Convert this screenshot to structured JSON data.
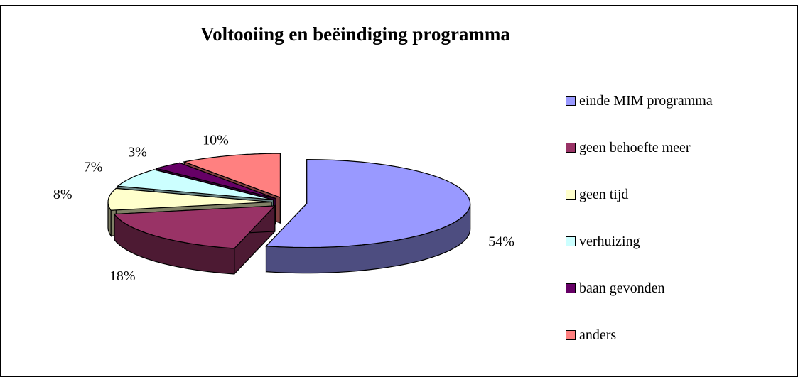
{
  "chart_data": {
    "type": "pie",
    "title": "Voltooiing en beëindiging programma",
    "categories": [
      "einde MIM programma",
      "geen behoefte meer",
      "geen tijd",
      "verhuizing",
      "baan gevonden",
      "anders"
    ],
    "values": [
      54,
      18,
      8,
      7,
      3,
      10
    ],
    "value_labels": [
      "54%",
      "18%",
      "8%",
      "7%",
      "3%",
      "10%"
    ],
    "colors": [
      "#9999ff",
      "#993366",
      "#ffffcc",
      "#ccffff",
      "#660066",
      "#ff8080"
    ],
    "legend": "right"
  }
}
